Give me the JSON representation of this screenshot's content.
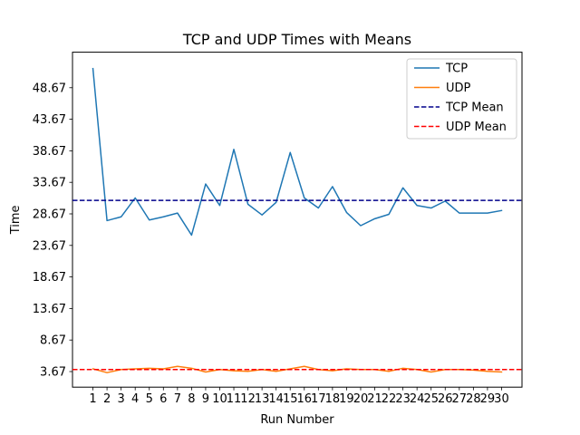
{
  "chart_data": {
    "type": "line",
    "title": "TCP and UDP Times with Means",
    "xlabel": "Run Number",
    "ylabel": "Time",
    "x": [
      1,
      2,
      3,
      4,
      5,
      6,
      7,
      8,
      9,
      10,
      11,
      12,
      13,
      14,
      15,
      16,
      17,
      18,
      19,
      20,
      21,
      22,
      23,
      24,
      25,
      26,
      27,
      28,
      29,
      30
    ],
    "xlim": [
      -0.45,
      31.45
    ],
    "ylim": [
      1.2,
      54.3
    ],
    "y_ticks": [
      3.67,
      8.67,
      13.67,
      18.67,
      23.67,
      28.67,
      33.67,
      38.67,
      43.67,
      48.67
    ],
    "y_tick_labels": [
      "3.67",
      "8.67",
      "13.67",
      "18.67",
      "23.67",
      "28.67",
      "33.67",
      "38.67",
      "43.67",
      "48.67"
    ],
    "grid": false,
    "legend_position": "top-right",
    "series": [
      {
        "name": "TCP",
        "style": "solid",
        "color": "#1f77b4",
        "values": [
          51.7,
          27.6,
          28.2,
          31.2,
          27.7,
          28.2,
          28.8,
          25.3,
          33.4,
          30.0,
          38.9,
          30.2,
          28.5,
          30.5,
          38.4,
          31.2,
          29.6,
          33.0,
          28.9,
          26.8,
          27.9,
          28.6,
          32.8,
          30.0,
          29.6,
          30.7,
          28.8,
          28.8,
          28.8,
          29.2
        ]
      },
      {
        "name": "UDP",
        "style": "solid",
        "color": "#ff7f0e",
        "values": [
          4.1,
          3.5,
          4.0,
          4.1,
          4.2,
          4.1,
          4.5,
          4.2,
          3.6,
          4.0,
          3.8,
          3.7,
          4.0,
          3.7,
          4.1,
          4.5,
          4.0,
          3.8,
          4.1,
          4.0,
          4.0,
          3.7,
          4.2,
          4.0,
          3.6,
          4.0,
          4.0,
          3.9,
          3.7,
          3.6
        ]
      },
      {
        "name": "TCP Mean",
        "style": "dashed",
        "color": "#00008b",
        "mean": 30.8
      },
      {
        "name": "UDP Mean",
        "style": "dashed",
        "color": "#ff0000",
        "mean": 4.0
      }
    ]
  }
}
